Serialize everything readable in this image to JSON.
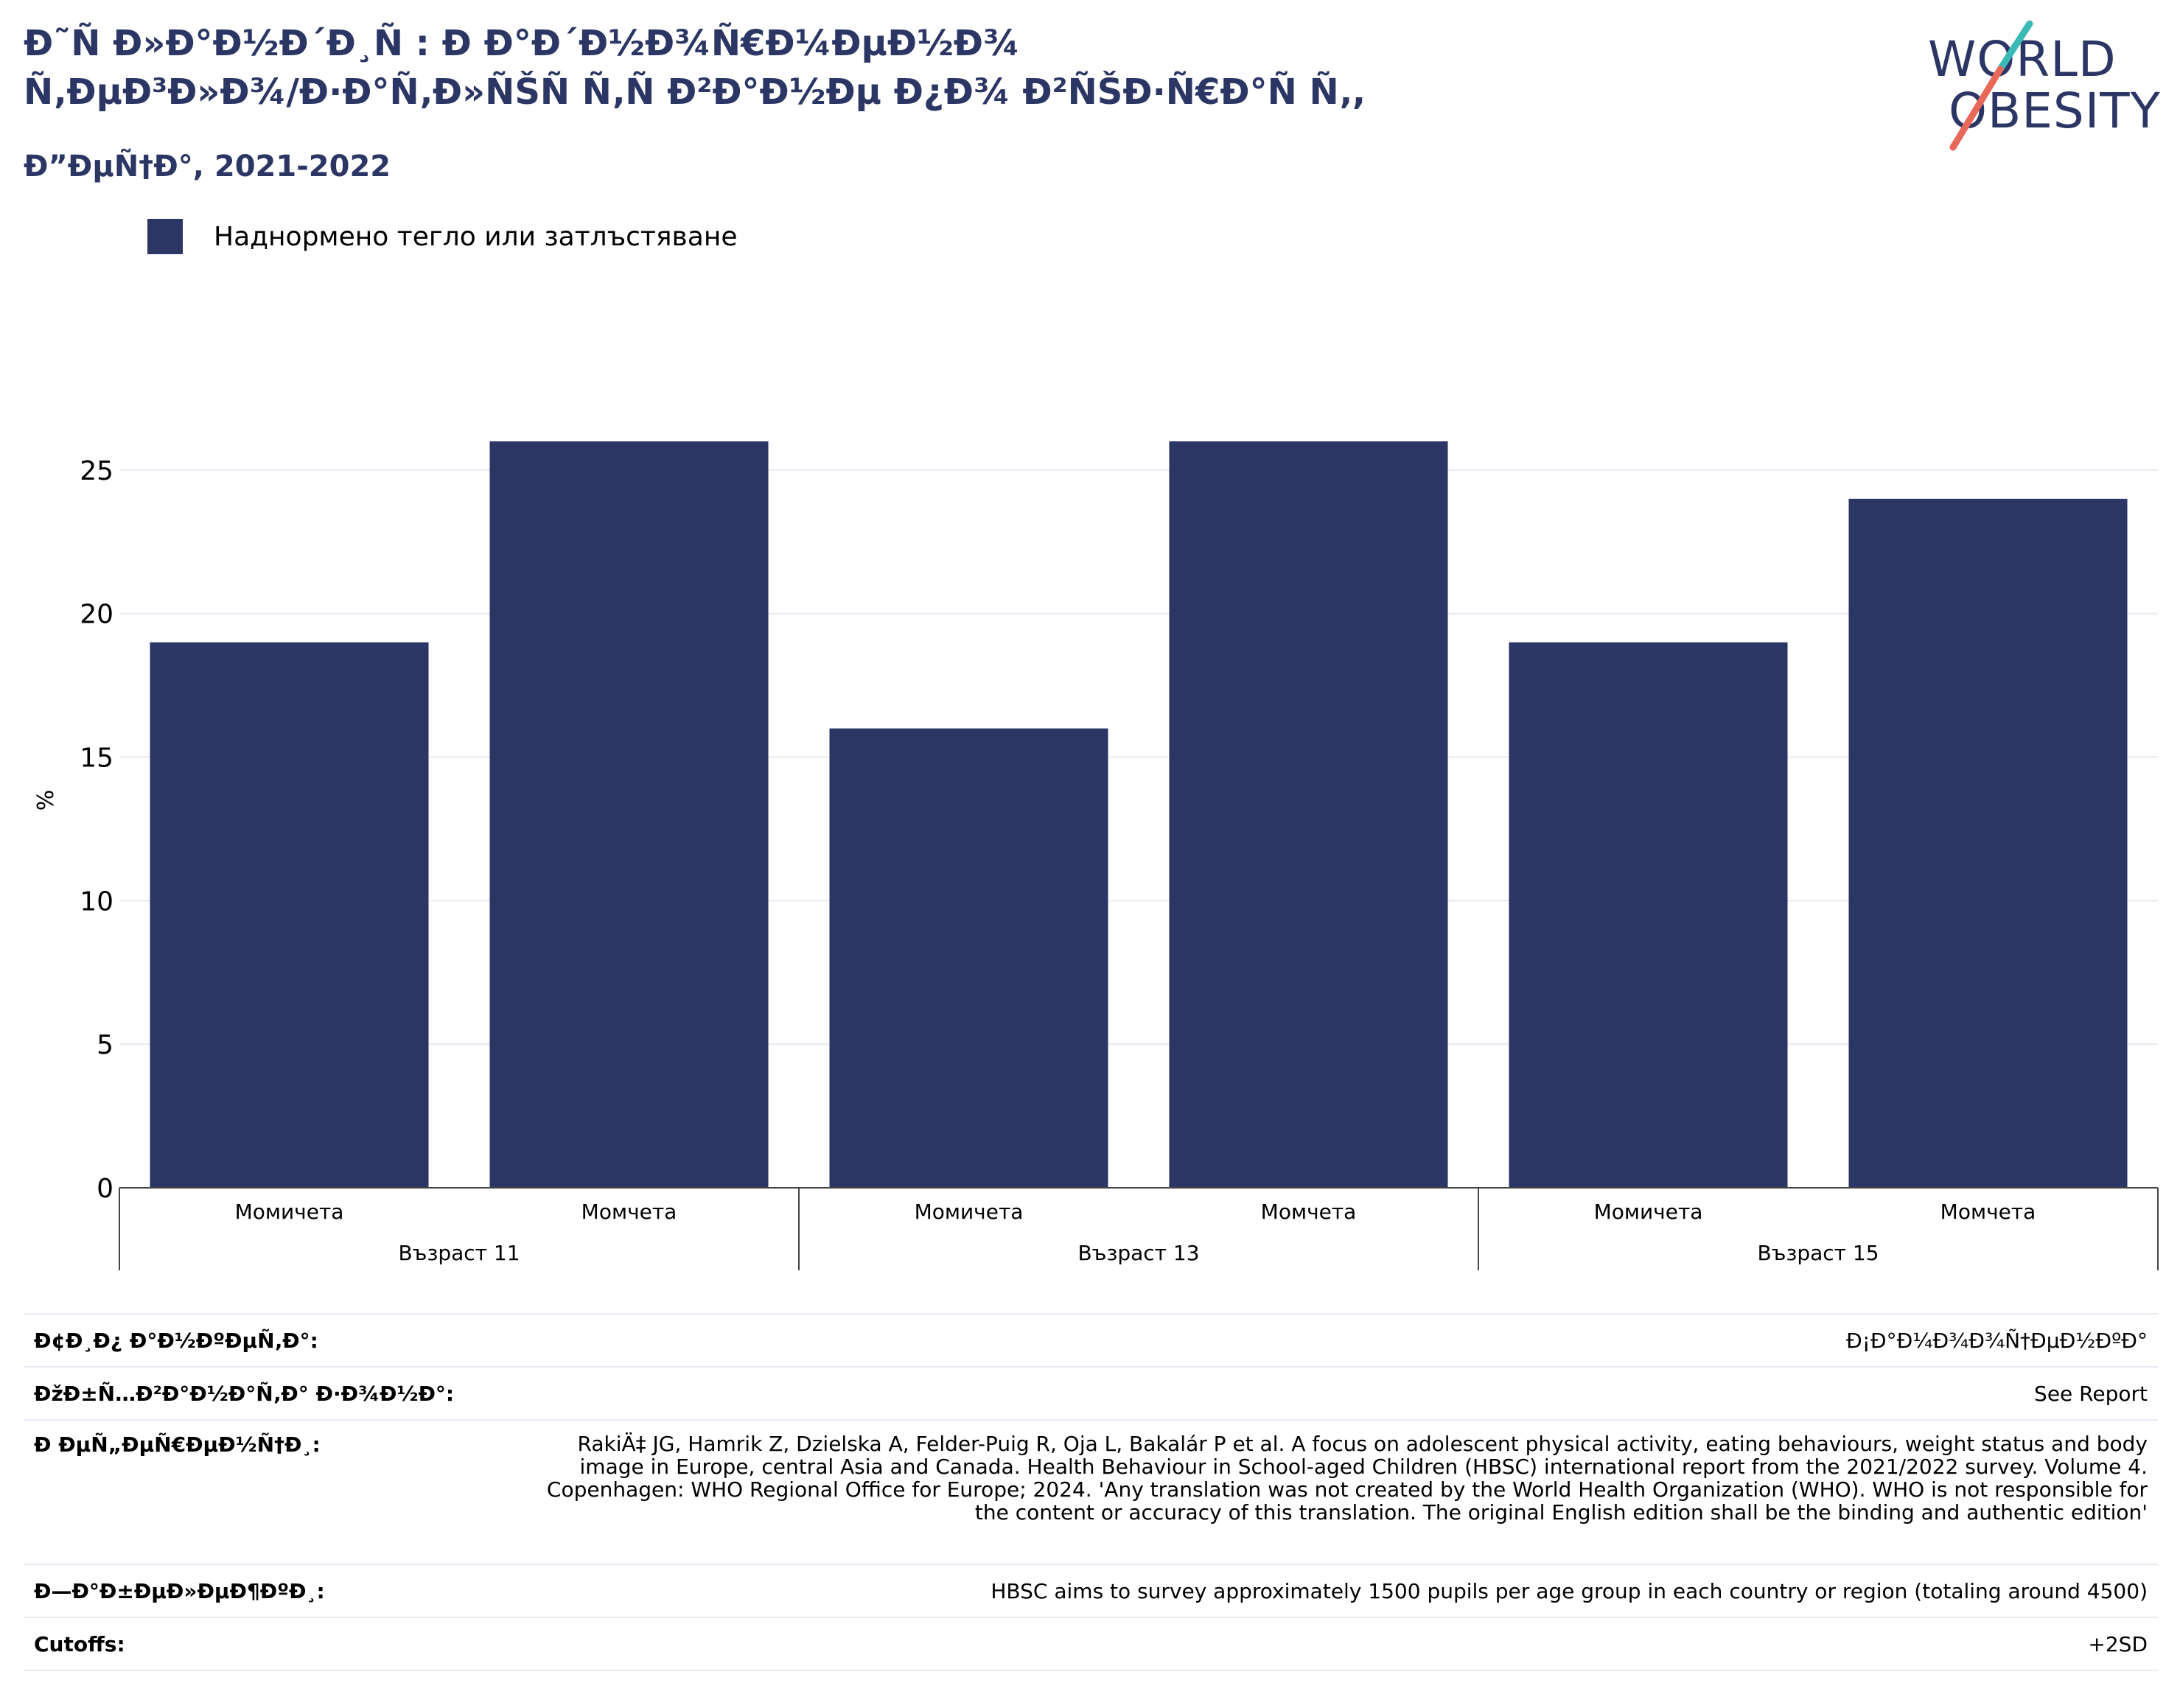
{
  "title": {
    "line1": "Ð˜Ñ Ð»Ð°Ð½Ð´Ð¸Ñ : Ð Ð°Ð´Ð½Ð¾Ñ€Ð¼ÐµÐ½Ð¾",
    "line2": "Ñ‚ÐµÐ³Ð»Ð¾/Ð·Ð°Ñ‚Ð»ÑŠÑ Ñ‚Ñ Ð²Ð°Ð½Ðµ Ð¿Ð¾ Ð²ÑŠÐ·Ñ€Ð°Ñ Ñ‚,",
    "subtitle": "Ð”ÐµÑ†Ð°, 2021-2022"
  },
  "logo": {
    "word1": "WORLD",
    "word2": "OBESITY"
  },
  "legend": {
    "label": "Наднормено тегло или затлъстяване",
    "color": "#2b3664"
  },
  "chart_data": {
    "type": "bar",
    "ylabel": "%",
    "ylim": [
      0,
      27
    ],
    "yticks": [
      0,
      5,
      10,
      15,
      20,
      25
    ],
    "grid": true,
    "legend_position": "top-left",
    "groups": [
      "Възраст 11",
      "Възраст 13",
      "Възраст 15"
    ],
    "categories": [
      "Момичета",
      "Момчета",
      "Момичета",
      "Момчета",
      "Момичета",
      "Момчета"
    ],
    "series": [
      {
        "name": "Наднормено тегло или затлъстяване",
        "color": "#2b3664",
        "values": [
          19,
          26,
          16,
          26,
          19,
          24
        ]
      }
    ]
  },
  "footer": {
    "rows": [
      {
        "label": "Ð¢Ð¸Ð¿ Ð°Ð½ÐºÐµÑ‚Ð°:",
        "value": "Ð¡Ð°Ð¼Ð¾Ð¾Ñ†ÐµÐ½ÐºÐ°"
      },
      {
        "label": "ÐžÐ±Ñ…Ð²Ð°Ð½Ð°Ñ‚Ð° Ð·Ð¾Ð½Ð°:",
        "value": "See Report"
      },
      {
        "label": "Ð ÐµÑ„ÐµÑ€ÐµÐ½Ñ†Ð¸:",
        "value": "RakiÄ‡ JG, Hamrik Z, Dzielska A, Felder-Puig R, Oja L, Bakalár P et al. A focus on adolescent physical activity, eating behaviours, weight status and body image in Europe, central Asia and Canada. Health Behaviour in School-aged Children (HBSC) international report from the 2021/2022 survey. Volume 4. Copenhagen: WHO Regional Office for Europe; 2024. 'Any translation was not created by the World Health Organization (WHO). WHO is not responsible for the content or accuracy of this translation. The original English edition shall be the binding and authentic edition'"
      },
      {
        "label": "Ð—Ð°Ð±ÐµÐ»ÐµÐ¶ÐºÐ¸:",
        "value": "HBSC aims to survey approximately 1500 pupils per age group in each country or region (totaling around 4500)"
      },
      {
        "label": "Cutoffs:",
        "value": "+2SD"
      }
    ]
  }
}
